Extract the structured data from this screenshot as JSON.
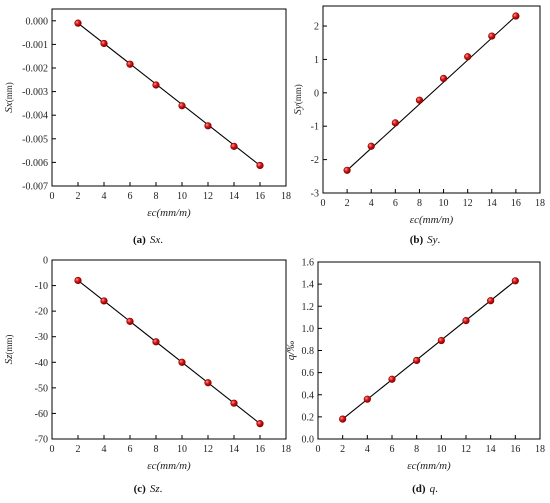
{
  "figure": {
    "marker_color": "#e01919",
    "line_color": "#000000"
  },
  "chart_data": [
    {
      "type": "scatter",
      "caption_bold": "(a)",
      "caption_italic": "Sx",
      "caption_suffix": ".",
      "ylabel_main": "Sx",
      "ylabel_sub": "(mm)",
      "xlabel": "εc(mm/m)",
      "x": [
        2,
        4,
        6,
        8,
        10,
        12,
        14,
        16
      ],
      "y": [
        -0.0001,
        -0.00096,
        -0.00184,
        -0.00272,
        -0.0036,
        -0.00445,
        -0.00532,
        -0.00613
      ],
      "xlim": [
        0,
        18
      ],
      "ylim": [
        -0.007,
        0.0005
      ],
      "xticks": [
        "0",
        "2",
        "4",
        "6",
        "8",
        "10",
        "12",
        "14",
        "16",
        "18"
      ],
      "yticks": [
        "0.000",
        "-0.001",
        "-0.002",
        "-0.003",
        "-0.004",
        "-0.005",
        "-0.006",
        "-0.007"
      ],
      "ytick_values": [
        0,
        -0.001,
        -0.002,
        -0.003,
        -0.004,
        -0.005,
        -0.006,
        -0.007
      ],
      "fit_line": true
    },
    {
      "type": "scatter",
      "caption_bold": "(b)",
      "caption_italic": "Sy",
      "caption_suffix": ".",
      "ylabel_main": "Sy",
      "ylabel_sub": "(mm)",
      "xlabel": "εc(mm/m)",
      "x": [
        2,
        4,
        6,
        8,
        10,
        12,
        14,
        16
      ],
      "y": [
        -2.32,
        -1.6,
        -0.9,
        -0.22,
        0.43,
        1.08,
        1.7,
        2.3
      ],
      "xlim": [
        0,
        18
      ],
      "ylim": [
        -3,
        2.6
      ],
      "xticks": [
        "0",
        "2",
        "4",
        "6",
        "8",
        "10",
        "12",
        "14",
        "16",
        "18"
      ],
      "yticks": [
        "2",
        "1",
        "0",
        "-1",
        "-2",
        "-3"
      ],
      "ytick_values": [
        2,
        1,
        0,
        -1,
        -2,
        -3
      ],
      "fit_line": true
    },
    {
      "type": "scatter",
      "caption_bold": "(c)",
      "caption_italic": "Sz",
      "caption_suffix": ".",
      "ylabel_main": "Sz",
      "ylabel_sub": "(mm)",
      "xlabel": "εc(mm/m)",
      "x": [
        2,
        4,
        6,
        8,
        10,
        12,
        14,
        16
      ],
      "y": [
        -8,
        -16,
        -24,
        -32,
        -40,
        -48,
        -56,
        -64
      ],
      "xlim": [
        0,
        18
      ],
      "ylim": [
        -70,
        0
      ],
      "xticks": [
        "0",
        "2",
        "4",
        "6",
        "8",
        "10",
        "12",
        "14",
        "16",
        "18"
      ],
      "yticks": [
        "0",
        "-10",
        "-20",
        "-30",
        "-40",
        "-50",
        "-60",
        "-70"
      ],
      "ytick_values": [
        0,
        -10,
        -20,
        -30,
        -40,
        -50,
        -60,
        -70
      ],
      "fit_line": true
    },
    {
      "type": "scatter",
      "caption_bold": "(d)",
      "caption_italic": "q",
      "caption_suffix": ".",
      "ylabel_main": "q/‰",
      "ylabel_sub": "",
      "xlabel": "εc(mm/m)",
      "x": [
        2,
        4,
        6,
        8,
        10,
        12,
        14,
        16
      ],
      "y": [
        0.18,
        0.36,
        0.54,
        0.71,
        0.89,
        1.07,
        1.25,
        1.43
      ],
      "xlim": [
        0,
        18
      ],
      "ylim": [
        0,
        1.6
      ],
      "xticks": [
        "0",
        "2",
        "4",
        "6",
        "8",
        "10",
        "12",
        "14",
        "16",
        "18"
      ],
      "yticks": [
        "0.0",
        "0.2",
        "0.4",
        "0.6",
        "0.8",
        "1.0",
        "1.2",
        "1.4",
        "1.6"
      ],
      "ytick_values": [
        0,
        0.2,
        0.4,
        0.6,
        0.8,
        1.0,
        1.2,
        1.4,
        1.6
      ],
      "fit_line": true
    }
  ]
}
